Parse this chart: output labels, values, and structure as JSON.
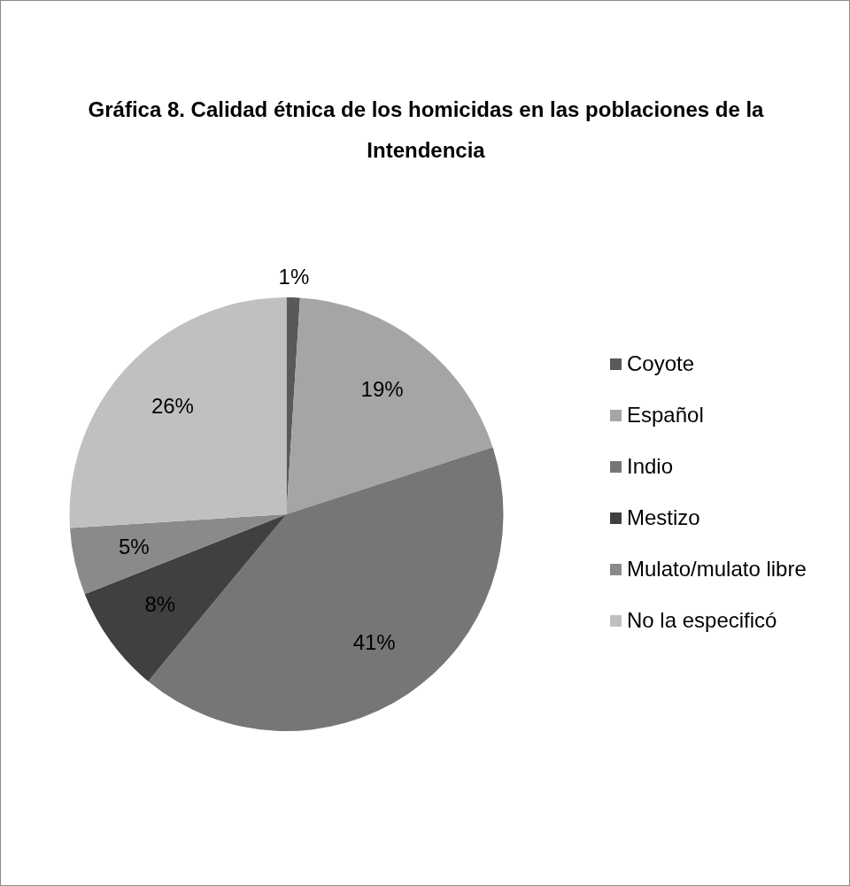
{
  "chart_data": {
    "type": "pie",
    "title": "Gráfica 8. Calidad étnica de los homicidas en las poblaciones de la Intendencia",
    "categories": [
      "Coyote",
      "Español",
      "Indio",
      "Mestizo",
      "Mulato/mulato libre",
      "No la especificó"
    ],
    "values": [
      1,
      19,
      41,
      8,
      5,
      26
    ],
    "value_labels": [
      "1%",
      "19%",
      "41%",
      "8%",
      "5%",
      "26%"
    ],
    "colors": [
      "#595959",
      "#a5a5a5",
      "#767676",
      "#404040",
      "#8a8a8a",
      "#c0c0c0"
    ],
    "legend": "right"
  }
}
